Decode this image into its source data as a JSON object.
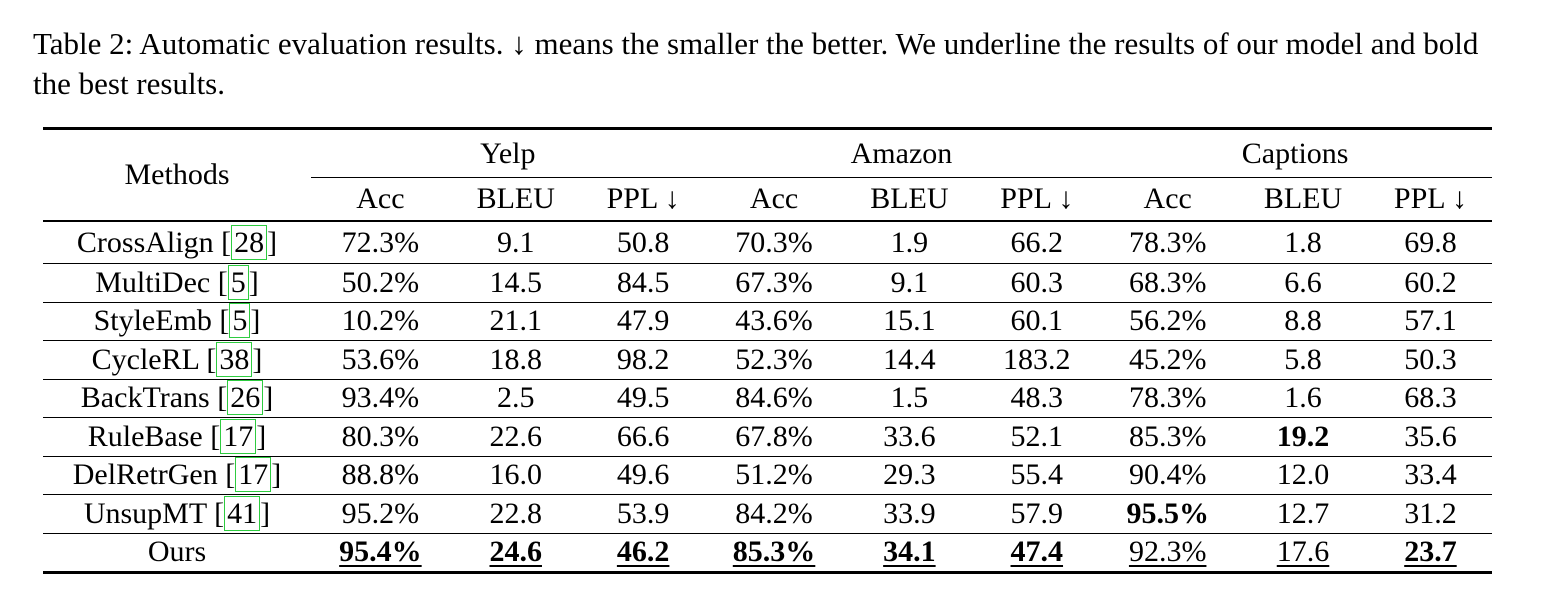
{
  "caption": "Table 2: Automatic evaluation results. ↓ means the smaller the better. We underline the results of our model and bold the best results.",
  "table": {
    "methods_header": "Methods",
    "groups": [
      "Yelp",
      "Amazon",
      "Captions"
    ],
    "subheaders": [
      "Acc",
      "BLEU",
      "PPL ↓",
      "Acc",
      "BLEU",
      "PPL ↓",
      "Acc",
      "BLEU",
      "PPL ↓"
    ],
    "rows": [
      {
        "method": "CrossAlign",
        "ref": "28",
        "values": [
          "72.3%",
          "9.1",
          "50.8",
          "70.3%",
          "1.9",
          "66.2",
          "78.3%",
          "1.8",
          "69.8"
        ]
      },
      {
        "method": "MultiDec",
        "ref": "5",
        "values": [
          "50.2%",
          "14.5",
          "84.5",
          "67.3%",
          "9.1",
          "60.3",
          "68.3%",
          "6.6",
          "60.2"
        ]
      },
      {
        "method": "StyleEmb",
        "ref": "5",
        "values": [
          "10.2%",
          "21.1",
          "47.9",
          "43.6%",
          "15.1",
          "60.1",
          "56.2%",
          "8.8",
          "57.1"
        ]
      },
      {
        "method": "CycleRL",
        "ref": "38",
        "values": [
          "53.6%",
          "18.8",
          "98.2",
          "52.3%",
          "14.4",
          "183.2",
          "45.2%",
          "5.8",
          "50.3"
        ]
      },
      {
        "method": "BackTrans",
        "ref": "26",
        "values": [
          "93.4%",
          "2.5",
          "49.5",
          "84.6%",
          "1.5",
          "48.3",
          "78.3%",
          "1.6",
          "68.3"
        ]
      },
      {
        "method": "RuleBase",
        "ref": "17",
        "values": [
          "80.3%",
          "22.6",
          "66.6",
          "67.8%",
          "33.6",
          "52.1",
          "85.3%",
          "19.2",
          "35.6"
        ]
      },
      {
        "method": "DelRetrGen",
        "ref": "17",
        "values": [
          "88.8%",
          "16.0",
          "49.6",
          "51.2%",
          "29.3",
          "55.4",
          "90.4%",
          "12.0",
          "33.4"
        ]
      },
      {
        "method": "UnsupMT",
        "ref": "41",
        "values": [
          "95.2%",
          "22.8",
          "53.9",
          "84.2%",
          "33.9",
          "57.9",
          "95.5%",
          "12.7",
          "31.2"
        ]
      },
      {
        "method": "Ours",
        "ref": "",
        "values": [
          "95.4%",
          "24.6",
          "46.2",
          "85.3%",
          "34.1",
          "47.4",
          "92.3%",
          "17.6",
          "23.7"
        ]
      }
    ],
    "bold_cells": [
      [
        5,
        7
      ],
      [
        7,
        6
      ],
      [
        8,
        0
      ],
      [
        8,
        1
      ],
      [
        8,
        2
      ],
      [
        8,
        3
      ],
      [
        8,
        4
      ],
      [
        8,
        5
      ],
      [
        8,
        8
      ]
    ],
    "underline_row": 8
  }
}
